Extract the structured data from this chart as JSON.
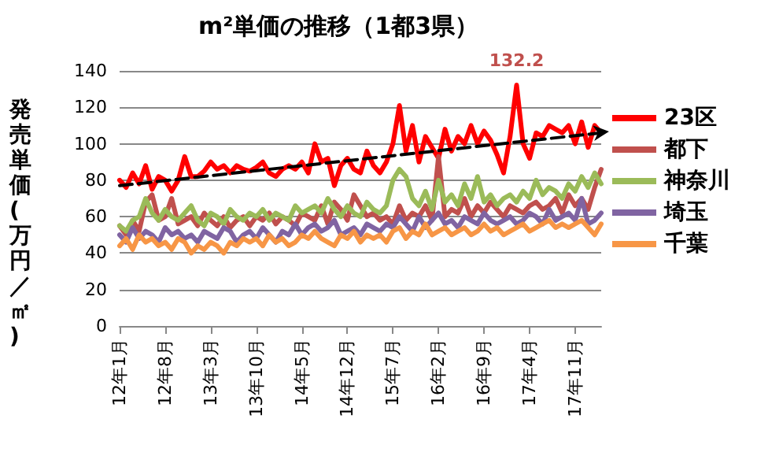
{
  "chart_data": {
    "type": "line",
    "title": "m²単価の推移（1都3県）",
    "ylabel": "発売単価(万円／㎡)",
    "categories": [
      "12年1月",
      null,
      null,
      null,
      null,
      null,
      null,
      "12年8月",
      null,
      null,
      null,
      null,
      null,
      null,
      "13年3月",
      null,
      null,
      null,
      null,
      null,
      null,
      "13年10月",
      null,
      null,
      null,
      null,
      null,
      null,
      "14年5月",
      null,
      null,
      null,
      null,
      null,
      null,
      "14年12月",
      null,
      null,
      null,
      null,
      null,
      null,
      "15年7月",
      null,
      null,
      null,
      null,
      null,
      null,
      "16年2月",
      null,
      null,
      null,
      null,
      null,
      null,
      "16年9月",
      null,
      null,
      null,
      null,
      null,
      null,
      "17年4月",
      null,
      null,
      null,
      null,
      null,
      null,
      "17年11月",
      null,
      null,
      null,
      null
    ],
    "ylim": [
      0,
      140
    ],
    "yticks": [
      0,
      20,
      40,
      60,
      80,
      100,
      120,
      140
    ],
    "grid": "y",
    "legend": "right",
    "line_style": "solid",
    "series": [
      {
        "name": "23区",
        "color": "#ff0000",
        "values": [
          80,
          76,
          84,
          78,
          88,
          75,
          82,
          80,
          74,
          80,
          93,
          82,
          82,
          85,
          90,
          86,
          88,
          84,
          88,
          86,
          85,
          87,
          90,
          84,
          82,
          86,
          88,
          86,
          90,
          84,
          100,
          90,
          92,
          77,
          88,
          92,
          86,
          84,
          96,
          88,
          84,
          90,
          100,
          121,
          96,
          110,
          90,
          104,
          98,
          92,
          108,
          96,
          104,
          100,
          110,
          100,
          107,
          102,
          94,
          84,
          104,
          132.2,
          100,
          92,
          106,
          104,
          110,
          108,
          106,
          110,
          100,
          112,
          98,
          110,
          106
        ],
        "value_labels": [
          null,
          null,
          null,
          null,
          null,
          null,
          null,
          null,
          null,
          null,
          null,
          null,
          null,
          null,
          null,
          null,
          null,
          null,
          null,
          null,
          null,
          null,
          null,
          null,
          null,
          null,
          null,
          null,
          null,
          null,
          null,
          null,
          null,
          null,
          null,
          null,
          null,
          null,
          null,
          null,
          null,
          null,
          null,
          null,
          null,
          null,
          null,
          null,
          null,
          null,
          null,
          null,
          null,
          null,
          null,
          null,
          null,
          null,
          null,
          null,
          null,
          "132.2",
          null,
          null,
          null,
          null,
          null,
          null,
          null,
          null,
          null,
          null,
          null,
          null,
          null
        ]
      },
      {
        "name": "都下",
        "color": "#c0504d",
        "values": [
          55,
          50,
          58,
          52,
          68,
          72,
          58,
          60,
          70,
          56,
          58,
          60,
          55,
          62,
          58,
          55,
          60,
          54,
          58,
          60,
          55,
          60,
          58,
          62,
          56,
          60,
          58,
          55,
          62,
          60,
          58,
          66,
          56,
          68,
          64,
          58,
          72,
          66,
          60,
          62,
          58,
          60,
          56,
          66,
          58,
          62,
          60,
          66,
          58,
          93,
          60,
          64,
          62,
          70,
          60,
          66,
          62,
          68,
          64,
          60,
          66,
          64,
          62,
          66,
          68,
          64,
          66,
          70,
          62,
          72,
          66,
          70,
          64,
          76,
          86
        ]
      },
      {
        "name": "神奈川",
        "color": "#9bbb59",
        "values": [
          55,
          52,
          58,
          60,
          70,
          62,
          58,
          64,
          60,
          58,
          62,
          66,
          58,
          55,
          62,
          60,
          56,
          64,
          60,
          58,
          62,
          60,
          64,
          58,
          62,
          60,
          58,
          66,
          62,
          64,
          66,
          62,
          70,
          64,
          60,
          66,
          62,
          60,
          68,
          64,
          62,
          66,
          80,
          86,
          82,
          70,
          66,
          74,
          64,
          80,
          68,
          72,
          66,
          78,
          70,
          82,
          68,
          72,
          66,
          70,
          72,
          68,
          74,
          70,
          80,
          72,
          76,
          74,
          70,
          78,
          74,
          82,
          76,
          84,
          78
        ]
      },
      {
        "name": "埼玉",
        "color": "#8064a2",
        "values": [
          50,
          46,
          54,
          48,
          52,
          50,
          46,
          54,
          50,
          52,
          48,
          50,
          46,
          52,
          50,
          48,
          54,
          52,
          46,
          50,
          52,
          48,
          54,
          50,
          46,
          52,
          50,
          56,
          50,
          54,
          56,
          52,
          54,
          58,
          50,
          52,
          54,
          50,
          56,
          54,
          52,
          56,
          54,
          60,
          56,
          52,
          60,
          54,
          58,
          62,
          56,
          58,
          54,
          60,
          58,
          56,
          62,
          58,
          56,
          58,
          60,
          56,
          58,
          62,
          60,
          56,
          64,
          58,
          60,
          62,
          58,
          70,
          56,
          58,
          62
        ]
      },
      {
        "name": "千葉",
        "color": "#f79646",
        "values": [
          44,
          48,
          42,
          50,
          46,
          48,
          44,
          46,
          42,
          48,
          46,
          40,
          44,
          42,
          46,
          44,
          40,
          46,
          44,
          48,
          46,
          48,
          44,
          50,
          46,
          48,
          44,
          46,
          50,
          48,
          52,
          48,
          46,
          44,
          50,
          48,
          52,
          46,
          50,
          48,
          50,
          46,
          52,
          54,
          48,
          52,
          50,
          56,
          50,
          52,
          54,
          50,
          52,
          54,
          50,
          52,
          56,
          52,
          54,
          50,
          52,
          54,
          56,
          52,
          54,
          56,
          58,
          54,
          56,
          54,
          56,
          58,
          54,
          50,
          56
        ]
      },
      {
        "type": "line",
        "color": "#000000",
        "line_style": "dashed",
        "values": [
          77,
          null,
          null,
          null,
          null,
          null,
          null,
          null,
          null,
          null,
          null,
          null,
          null,
          null,
          null,
          null,
          null,
          null,
          null,
          null,
          null,
          null,
          null,
          null,
          null,
          null,
          null,
          null,
          null,
          null,
          null,
          null,
          null,
          null,
          null,
          null,
          null,
          null,
          null,
          null,
          null,
          null,
          null,
          null,
          null,
          null,
          null,
          null,
          null,
          null,
          null,
          null,
          null,
          null,
          null,
          null,
          null,
          null,
          null,
          null,
          null,
          null,
          null,
          null,
          null,
          null,
          null,
          null,
          null,
          null,
          null,
          null,
          null,
          null,
          106
        ]
      }
    ]
  }
}
